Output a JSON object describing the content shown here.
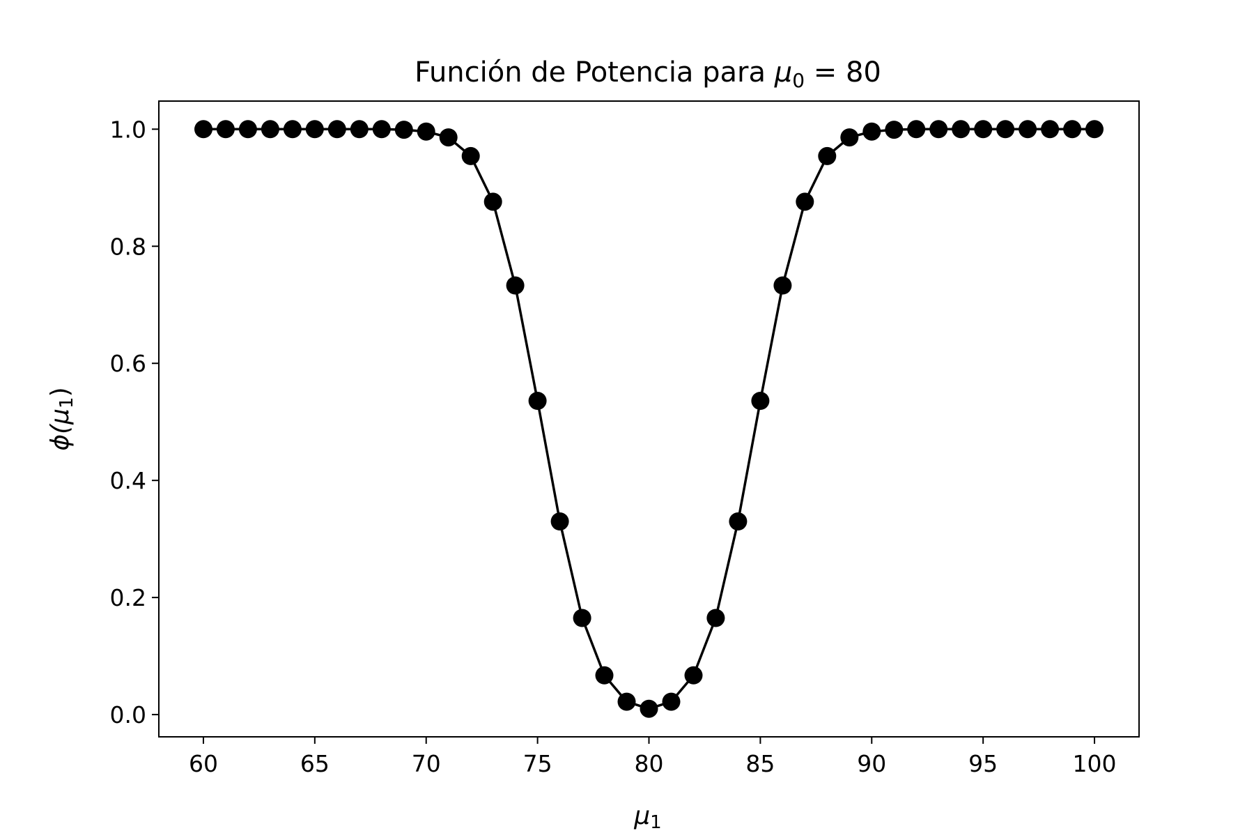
{
  "chart_data": {
    "type": "line",
    "title_prefix": "Función de Potencia para ",
    "title_math_symbol": "μ",
    "title_math_subscript": "0",
    "title_suffix": " = 80",
    "xlabel_symbol": "μ",
    "xlabel_subscript": "1",
    "ylabel_prefix": "ϕ(",
    "ylabel_symbol": "μ",
    "ylabel_subscript": "1",
    "ylabel_suffix": ")",
    "xlim": [
      58,
      102
    ],
    "ylim": [
      -0.038,
      1.048
    ],
    "xticks": [
      60,
      65,
      70,
      75,
      80,
      85,
      90,
      95,
      100
    ],
    "xtick_labels": [
      "60",
      "65",
      "70",
      "75",
      "80",
      "85",
      "90",
      "95",
      "100"
    ],
    "yticks": [
      0.0,
      0.2,
      0.4,
      0.6,
      0.8,
      1.0
    ],
    "ytick_labels": [
      "0.0",
      "0.2",
      "0.4",
      "0.6",
      "0.8",
      "1.0"
    ],
    "grid": false,
    "series": [
      {
        "color": "#000000",
        "marker": "circle",
        "x": [
          60,
          61,
          62,
          63,
          64,
          65,
          66,
          67,
          68,
          69,
          70,
          71,
          72,
          73,
          74,
          75,
          76,
          77,
          78,
          79,
          80,
          81,
          82,
          83,
          84,
          85,
          86,
          87,
          88,
          89,
          90,
          91,
          92,
          93,
          94,
          95,
          96,
          97,
          98,
          99,
          100
        ],
        "y": [
          1.0,
          1.0,
          1.0,
          1.0,
          1.0,
          1.0,
          1.0,
          1.0,
          1.0,
          0.999,
          0.996,
          0.986,
          0.954,
          0.876,
          0.733,
          0.536,
          0.33,
          0.165,
          0.067,
          0.022,
          0.01,
          0.022,
          0.067,
          0.165,
          0.33,
          0.536,
          0.733,
          0.876,
          0.954,
          0.986,
          0.996,
          0.999,
          1.0,
          1.0,
          1.0,
          1.0,
          1.0,
          1.0,
          1.0,
          1.0,
          1.0
        ]
      }
    ]
  }
}
